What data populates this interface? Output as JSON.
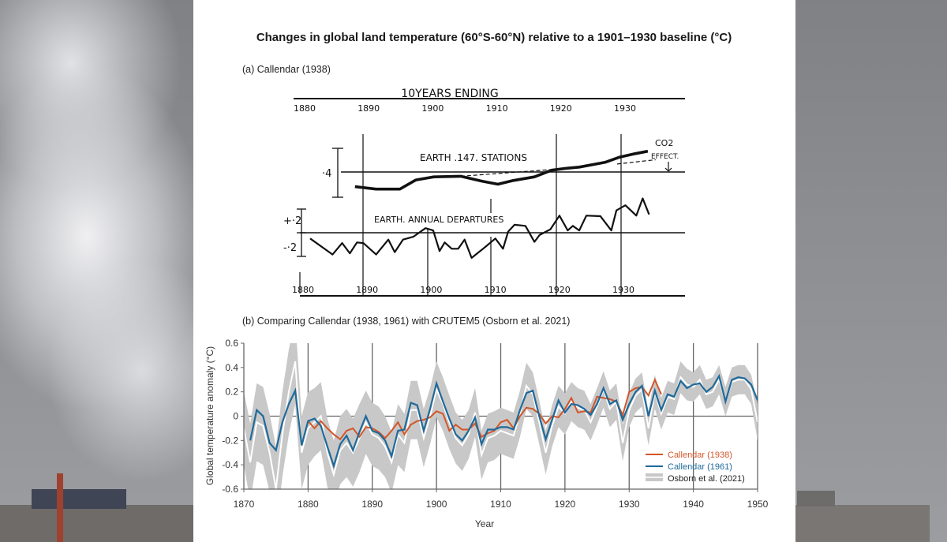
{
  "title": "Changes in global land temperature (60°S-60°N) relative to a 1901–1930 baseline (°C)",
  "panel_a": {
    "label": "(a) Callendar (1938)",
    "header": "10YEARS ENDING",
    "top_year_labels": [
      "1880",
      "1890",
      "1900",
      "1910",
      "1920",
      "1930"
    ],
    "bottom_year_labels": [
      "1880",
      "1890",
      "1900",
      "1910",
      "1920",
      "1930"
    ],
    "ten_year_label": "EARTH .147. STATIONS",
    "annual_label": "EARTH. ANNUAL DEPARTURES",
    "co2_label_1": "CO2",
    "co2_label_2": "EFFECT.",
    "scale_ten_year": "·4",
    "scale_plus": "+·2",
    "scale_minus": "-·2"
  },
  "panel_b": {
    "label": "(b) Comparing Callendar (1938, 1961) with CRUTEM5 (Osborn et al. 2021)"
  },
  "chart_data": [
    {
      "type": "line",
      "title": "(a) Callendar (1938)",
      "series": [
        {
          "name": "EARTH .147. STATIONS",
          "points": [
            [
              1888.6,
              -0.12
            ],
            [
              1891.9,
              -0.14
            ],
            [
              1895.6,
              -0.14
            ],
            [
              1898.1,
              -0.065
            ],
            [
              1900.9,
              -0.04
            ],
            [
              1905.1,
              -0.035
            ],
            [
              1908.4,
              -0.075
            ],
            [
              1910.9,
              -0.1
            ],
            [
              1913.3,
              -0.07
            ],
            [
              1916.6,
              -0.04
            ],
            [
              1919.3,
              0.015
            ],
            [
              1921.6,
              0.03
            ],
            [
              1923.6,
              0.04
            ],
            [
              1927.7,
              0.08
            ],
            [
              1929.8,
              0.12
            ],
            [
              1932.3,
              0.15
            ],
            [
              1934.3,
              0.17
            ]
          ]
        },
        {
          "name": "EARTH. ANNUAL DEPARTURES",
          "points": [
            [
              1881.6,
              -0.05
            ],
            [
              1885.1,
              -0.19
            ],
            [
              1886.6,
              -0.09
            ],
            [
              1887.8,
              -0.18
            ],
            [
              1888.9,
              -0.085
            ],
            [
              1889.9,
              -0.09
            ],
            [
              1891.9,
              -0.19
            ],
            [
              1893.8,
              -0.06
            ],
            [
              1894.8,
              -0.17
            ],
            [
              1896.1,
              -0.06
            ],
            [
              1897.7,
              -0.035
            ],
            [
              1899.6,
              0.04
            ],
            [
              1900.8,
              0.02
            ],
            [
              1901.8,
              -0.16
            ],
            [
              1902.6,
              -0.085
            ],
            [
              1903.7,
              -0.14
            ],
            [
              1904.7,
              -0.14
            ],
            [
              1905.7,
              -0.06
            ],
            [
              1906.8,
              -0.22
            ],
            [
              1908.8,
              -0.13
            ],
            [
              1910.5,
              -0.05
            ],
            [
              1911.7,
              -0.14
            ],
            [
              1912.5,
              0.01
            ],
            [
              1913.5,
              0.07
            ],
            [
              1915.2,
              0.06
            ],
            [
              1916.6,
              -0.08
            ],
            [
              1917.4,
              -0.02
            ],
            [
              1919.1,
              0.03
            ],
            [
              1920.5,
              0.15
            ],
            [
              1921.8,
              0.02
            ],
            [
              1922.6,
              0.06
            ],
            [
              1923.6,
              0.02
            ],
            [
              1924.7,
              0.15
            ],
            [
              1926.9,
              0.145
            ],
            [
              1928.6,
              0.02
            ],
            [
              1929.4,
              0.195
            ],
            [
              1930.8,
              0.24
            ],
            [
              1932.5,
              0.15
            ],
            [
              1933.5,
              0.3
            ],
            [
              1934.5,
              0.16
            ]
          ]
        }
      ],
      "dashed_reference": [
        [
          [
            1905.1,
            -0.035
          ],
          [
            1919.3,
            0.02
          ]
        ],
        [
          [
            1929.5,
            0.065
          ],
          [
            1935.5,
            0.1
          ]
        ]
      ]
    },
    {
      "type": "line",
      "title": "(b) Comparing Callendar (1938, 1961) with CRUTEM5 (Osborn et al. 2021)",
      "xlabel": "Year",
      "ylabel": "Global temperature anomaly (°C)",
      "xlim": [
        1870,
        1950
      ],
      "ylim": [
        -0.6,
        0.6
      ],
      "xticks": [
        "1870",
        "1880",
        "1890",
        "1900",
        "1910",
        "1920",
        "1930",
        "1940",
        "1950"
      ],
      "yticks": [
        "0.6",
        "0.4",
        "0.2",
        "0",
        "-0.2",
        "-0.4",
        "-0.6"
      ],
      "grid": "vertical lines at decades, horizontal line at 0",
      "legend_position": "bottom-right",
      "series": [
        {
          "name": "Callendar (1938)",
          "color": "#d2562a",
          "start_year": 1880,
          "values": [
            -0.04,
            -0.1,
            -0.04,
            -0.1,
            -0.15,
            -0.19,
            -0.12,
            -0.1,
            -0.17,
            -0.09,
            -0.1,
            -0.13,
            -0.18,
            -0.12,
            -0.05,
            -0.15,
            -0.07,
            -0.04,
            -0.03,
            -0.01,
            0.04,
            0.02,
            -0.12,
            -0.07,
            -0.11,
            -0.11,
            -0.06,
            -0.17,
            -0.14,
            -0.12,
            -0.05,
            -0.03,
            -0.1,
            0.0,
            0.07,
            0.06,
            0.02,
            -0.06,
            0.0,
            -0.01,
            0.06,
            0.15,
            0.03,
            0.04,
            0.03,
            0.16,
            0.15,
            0.14,
            0.12,
            0.01,
            0.2,
            0.23,
            0.24,
            0.17,
            0.3,
            0.18
          ]
        },
        {
          "name": "Callendar (1961)",
          "color": "#1f6a9a",
          "start_year": 1871,
          "values": [
            -0.2,
            0.05,
            0.0,
            -0.22,
            -0.28,
            -0.05,
            0.1,
            0.21,
            -0.24,
            -0.04,
            -0.02,
            -0.08,
            -0.25,
            -0.41,
            -0.23,
            -0.16,
            -0.28,
            -0.13,
            0.0,
            -0.12,
            -0.14,
            -0.2,
            -0.33,
            -0.12,
            -0.11,
            0.11,
            0.09,
            -0.12,
            0.06,
            0.27,
            0.12,
            -0.02,
            -0.15,
            -0.2,
            -0.12,
            -0.01,
            -0.23,
            -0.11,
            -0.11,
            -0.09,
            -0.09,
            -0.11,
            0.05,
            0.19,
            0.21,
            0.0,
            -0.19,
            -0.03,
            0.13,
            0.03,
            0.1,
            0.09,
            0.06,
            0.01,
            0.1,
            0.23,
            0.1,
            0.13,
            -0.03,
            0.1,
            0.2,
            0.25,
            0.0,
            0.21,
            0.05,
            0.18,
            0.16,
            0.29,
            0.23,
            0.26,
            0.27,
            0.2,
            0.24,
            0.33,
            0.12,
            0.3,
            0.32,
            0.31,
            0.26,
            0.13
          ]
        },
        {
          "name": "Osborn et al. (2021)",
          "color": "#c8c8c8",
          "line_color": "#ffffff",
          "start_year": 1870,
          "values": [
            -0.1,
            -0.38,
            -0.05,
            -0.08,
            -0.3,
            -0.6,
            -0.15,
            0.2,
            0.45,
            -0.3,
            -0.1,
            -0.05,
            0.0,
            -0.3,
            -0.48,
            -0.28,
            -0.22,
            -0.3,
            -0.18,
            -0.05,
            -0.15,
            -0.18,
            -0.25,
            -0.38,
            -0.15,
            -0.22,
            0.05,
            0.05,
            -0.18,
            0.0,
            0.22,
            0.1,
            -0.05,
            -0.18,
            -0.24,
            -0.15,
            0.03,
            -0.32,
            -0.18,
            -0.16,
            -0.12,
            -0.14,
            -0.16,
            0.02,
            0.25,
            0.18,
            -0.05,
            -0.3,
            -0.08,
            0.08,
            0.02,
            0.12,
            0.07,
            0.05,
            -0.05,
            0.08,
            0.22,
            0.06,
            0.12,
            -0.22,
            0.05,
            0.17,
            0.22,
            -0.1,
            0.2,
            0.02,
            0.16,
            0.14,
            0.32,
            0.26,
            0.24,
            0.3,
            0.18,
            0.2,
            0.3,
            0.12,
            0.28,
            0.3,
            0.3,
            0.22,
            -0.05
          ],
          "uncertainty_halfwidth": [
            0.3,
            0.32,
            0.32,
            0.32,
            0.32,
            0.35,
            0.35,
            0.35,
            0.35,
            0.3,
            0.3,
            0.28,
            0.28,
            0.28,
            0.28,
            0.28,
            0.28,
            0.28,
            0.28,
            0.26,
            0.26,
            0.26,
            0.25,
            0.25,
            0.25,
            0.24,
            0.24,
            0.24,
            0.24,
            0.23,
            0.23,
            0.22,
            0.22,
            0.21,
            0.21,
            0.2,
            0.2,
            0.2,
            0.2,
            0.2,
            0.19,
            0.19,
            0.19,
            0.19,
            0.19,
            0.18,
            0.18,
            0.18,
            0.17,
            0.17,
            0.17,
            0.16,
            0.16,
            0.16,
            0.15,
            0.15,
            0.15,
            0.15,
            0.15,
            0.15,
            0.14,
            0.14,
            0.14,
            0.14,
            0.14,
            0.13,
            0.13,
            0.13,
            0.13,
            0.13,
            0.12,
            0.12,
            0.12,
            0.12,
            0.12,
            0.12,
            0.12,
            0.12,
            0.12,
            0.12,
            0.15
          ]
        }
      ]
    }
  ]
}
